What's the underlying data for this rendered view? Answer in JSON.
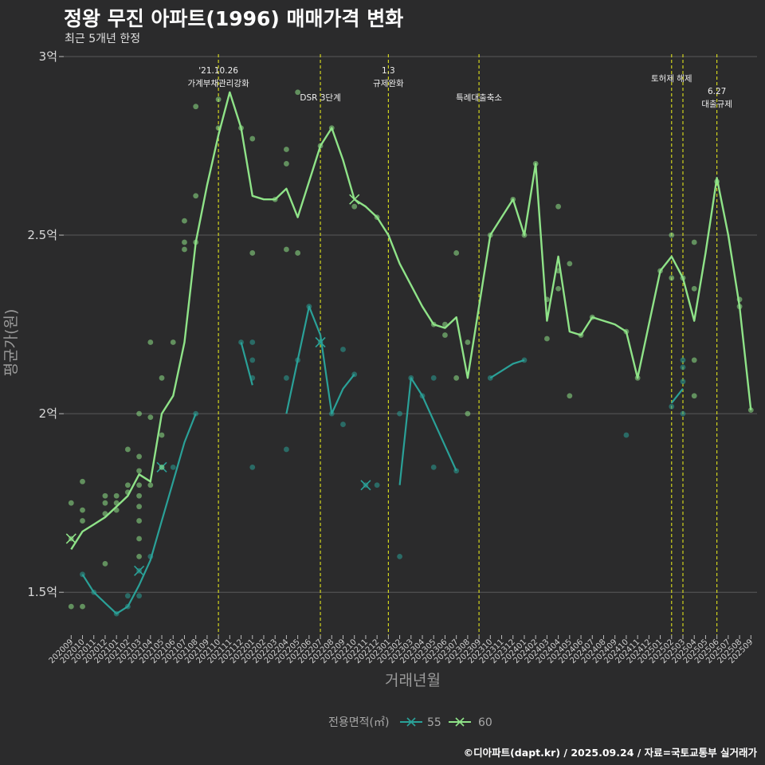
{
  "header": {
    "title": "정왕 무진 아파트(1996) 매매가격 변화",
    "subtitle": "최근 5개년 한정"
  },
  "caption": "©디아파트(dapt.kr) / 2025.09.24 / 자료=국토교통부 실거래가",
  "chart_data": {
    "type": "line",
    "title": "정왕 무진 아파트(1996) 매매가격 변화",
    "xlabel": "거래년월",
    "ylabel": "평균가(원)",
    "ylim": [
      1.38,
      3.02
    ],
    "y_ticks": [
      {
        "value": 1.5,
        "label": "1.5억"
      },
      {
        "value": 2.0,
        "label": "2억"
      },
      {
        "value": 2.5,
        "label": "2.5억"
      },
      {
        "value": 3.0,
        "label": "3억"
      }
    ],
    "x_categories": [
      "202009",
      "202010",
      "202011",
      "202012",
      "202101",
      "202102",
      "202103",
      "202104",
      "202105",
      "202106",
      "202107",
      "202108",
      "202109",
      "202110",
      "202111",
      "202112",
      "202201",
      "202202",
      "202203",
      "202204",
      "202205",
      "202206",
      "202207",
      "202208",
      "202209",
      "202210",
      "202211",
      "202212",
      "202301",
      "202302",
      "202303",
      "202304",
      "202305",
      "202306",
      "202307",
      "202308",
      "202309",
      "202310",
      "202311",
      "202312",
      "202401",
      "202402",
      "202403",
      "202404",
      "202405",
      "202406",
      "202407",
      "202408",
      "202409",
      "202410",
      "202411",
      "202412",
      "202501",
      "202502",
      "202503",
      "202504",
      "202505",
      "202506",
      "202507",
      "202508",
      "202509"
    ],
    "events": [
      {
        "month": "202110",
        "label": "'21.10.26\n가계부채관리강화",
        "row": 0
      },
      {
        "month": "202207",
        "label": "DSR 3단계",
        "row": 1
      },
      {
        "month": "202301",
        "label": "1.3\n규제완화",
        "row": 0
      },
      {
        "month": "202309",
        "label": "특례대출축소",
        "row": 1
      },
      {
        "month": "202502",
        "label": "토허제 해제",
        "row": 2
      },
      {
        "month": "202503",
        "label": "",
        "row": 2
      },
      {
        "month": "202506",
        "label": "6.27\n대출규제",
        "row": 3
      }
    ],
    "legend": {
      "title": "전용면적(㎡)",
      "placement": "bottom",
      "entries": [
        "55",
        "60"
      ]
    },
    "series": [
      {
        "name": "60",
        "color": "#8fe388",
        "line": [
          [
            0,
            1.62
          ],
          [
            1,
            1.67
          ],
          [
            2,
            1.69
          ],
          [
            3,
            1.71
          ],
          [
            4,
            1.74
          ],
          [
            5,
            1.77
          ],
          [
            6,
            1.83
          ],
          [
            7,
            1.81
          ],
          [
            8,
            2.0
          ],
          [
            9,
            2.05
          ],
          [
            10,
            2.2
          ],
          [
            11,
            2.48
          ],
          [
            12,
            2.64
          ],
          [
            13,
            2.78
          ],
          [
            14,
            2.9
          ],
          [
            15,
            2.8
          ],
          [
            16,
            2.61
          ],
          [
            17,
            2.6
          ],
          [
            18,
            2.6
          ],
          [
            19,
            2.63
          ],
          [
            20,
            2.55
          ],
          [
            21,
            2.65
          ],
          [
            22,
            2.75
          ],
          [
            23,
            2.8
          ],
          [
            24,
            2.71
          ],
          [
            25,
            2.6
          ],
          [
            26,
            2.58
          ],
          [
            27,
            2.55
          ],
          [
            28,
            2.5
          ],
          [
            29,
            2.42
          ],
          [
            30,
            2.36
          ],
          [
            31,
            2.3
          ],
          [
            32,
            2.25
          ],
          [
            33,
            2.24
          ],
          [
            34,
            2.27
          ],
          [
            35,
            2.1
          ],
          [
            36,
            2.3
          ],
          [
            37,
            2.5
          ],
          [
            38,
            2.55
          ],
          [
            39,
            2.6
          ],
          [
            40,
            2.5
          ],
          [
            41,
            2.7
          ],
          [
            42,
            2.26
          ],
          [
            43,
            2.44
          ],
          [
            44,
            2.23
          ],
          [
            45,
            2.22
          ],
          [
            46,
            2.27
          ],
          [
            47,
            2.26
          ],
          [
            48,
            2.25
          ],
          [
            49,
            2.23
          ],
          [
            50,
            2.1
          ],
          [
            51,
            2.25
          ],
          [
            52,
            2.4
          ],
          [
            53,
            2.44
          ],
          [
            54,
            2.38
          ],
          [
            55,
            2.26
          ],
          [
            56,
            2.45
          ],
          [
            57,
            2.66
          ],
          [
            58,
            2.5
          ],
          [
            59,
            2.3
          ],
          [
            60,
            2.01
          ]
        ],
        "points": [
          [
            0,
            1.75
          ],
          [
            0,
            1.65
          ],
          [
            0,
            1.46
          ],
          [
            1,
            1.81
          ],
          [
            1,
            1.73
          ],
          [
            1,
            1.7
          ],
          [
            1,
            1.46
          ],
          [
            3,
            1.77
          ],
          [
            3,
            1.75
          ],
          [
            3,
            1.72
          ],
          [
            3,
            1.58
          ],
          [
            4,
            1.77
          ],
          [
            4,
            1.75
          ],
          [
            4,
            1.73
          ],
          [
            5,
            1.9
          ],
          [
            5,
            1.8
          ],
          [
            5,
            1.78
          ],
          [
            6,
            1.88
          ],
          [
            6,
            1.84
          ],
          [
            6,
            1.8
          ],
          [
            6,
            1.77
          ],
          [
            6,
            1.74
          ],
          [
            6,
            1.7
          ],
          [
            6,
            1.65
          ],
          [
            6,
            1.6
          ],
          [
            6,
            2.0
          ],
          [
            7,
            2.2
          ],
          [
            7,
            1.99
          ],
          [
            7,
            1.8
          ],
          [
            8,
            2.1
          ],
          [
            8,
            1.94
          ],
          [
            8,
            1.85
          ],
          [
            9,
            2.2
          ],
          [
            10,
            2.54
          ],
          [
            10,
            2.48
          ],
          [
            10,
            2.46
          ],
          [
            11,
            2.86
          ],
          [
            11,
            2.61
          ],
          [
            11,
            2.48
          ],
          [
            13,
            2.88
          ],
          [
            13,
            2.8
          ],
          [
            15,
            2.8
          ],
          [
            16,
            2.77
          ],
          [
            16,
            2.45
          ],
          [
            18,
            2.6
          ],
          [
            19,
            2.74
          ],
          [
            19,
            2.7
          ],
          [
            19,
            2.46
          ],
          [
            20,
            2.9
          ],
          [
            20,
            2.45
          ],
          [
            22,
            2.75
          ],
          [
            23,
            2.8
          ],
          [
            25,
            2.58
          ],
          [
            27,
            2.55
          ],
          [
            32,
            2.25
          ],
          [
            33,
            2.25
          ],
          [
            33,
            2.22
          ],
          [
            34,
            2.45
          ],
          [
            34,
            2.1
          ],
          [
            35,
            2.2
          ],
          [
            35,
            2.0
          ],
          [
            37,
            2.5
          ],
          [
            39,
            2.6
          ],
          [
            40,
            2.5
          ],
          [
            41,
            2.7
          ],
          [
            42,
            2.32
          ],
          [
            42,
            2.21
          ],
          [
            43,
            2.58
          ],
          [
            43,
            2.4
          ],
          [
            43,
            2.35
          ],
          [
            44,
            2.42
          ],
          [
            44,
            2.05
          ],
          [
            45,
            2.22
          ],
          [
            46,
            2.27
          ],
          [
            49,
            2.23
          ],
          [
            50,
            2.1
          ],
          [
            52,
            2.4
          ],
          [
            53,
            2.5
          ],
          [
            53,
            2.38
          ],
          [
            54,
            2.38
          ],
          [
            55,
            2.48
          ],
          [
            55,
            2.35
          ],
          [
            55,
            2.15
          ],
          [
            55,
            2.05
          ],
          [
            57,
            2.65
          ],
          [
            59,
            2.32
          ],
          [
            59,
            2.3
          ],
          [
            60,
            2.01
          ]
        ],
        "x_marks": [
          [
            0,
            1.65
          ],
          [
            25,
            2.6
          ]
        ]
      },
      {
        "name": "55",
        "color": "#2aa198",
        "segments": [
          [
            [
              1,
              1.55
            ],
            [
              2,
              1.5
            ],
            [
              3,
              1.47
            ],
            [
              4,
              1.44
            ],
            [
              5,
              1.46
            ],
            [
              6,
              1.52
            ],
            [
              7,
              1.59
            ],
            [
              8,
              1.7
            ],
            [
              9,
              1.81
            ],
            [
              10,
              1.92
            ],
            [
              11,
              2.0
            ]
          ],
          [
            [
              15,
              2.2
            ],
            [
              16,
              2.08
            ]
          ],
          [
            [
              19,
              2.0
            ],
            [
              20,
              2.15
            ],
            [
              21,
              2.3
            ],
            [
              22,
              2.22
            ],
            [
              23,
              2.0
            ],
            [
              24,
              2.07
            ],
            [
              25,
              2.11
            ]
          ],
          [
            [
              29,
              1.8
            ],
            [
              30,
              2.1
            ],
            [
              31,
              2.05
            ],
            [
              32,
              1.98
            ],
            [
              34,
              1.84
            ]
          ],
          [
            [
              37,
              2.1
            ],
            [
              38,
              2.12
            ],
            [
              39,
              2.14
            ],
            [
              40,
              2.15
            ]
          ],
          [
            [
              53,
              2.03
            ],
            [
              54,
              2.07
            ]
          ]
        ],
        "points": [
          [
            1,
            1.55
          ],
          [
            2,
            1.5
          ],
          [
            4,
            1.44
          ],
          [
            5,
            1.46
          ],
          [
            5,
            1.49
          ],
          [
            6,
            1.49
          ],
          [
            6,
            1.56
          ],
          [
            7,
            1.6
          ],
          [
            8,
            1.85
          ],
          [
            9,
            1.85
          ],
          [
            11,
            2.0
          ],
          [
            15,
            2.2
          ],
          [
            16,
            2.2
          ],
          [
            16,
            2.15
          ],
          [
            16,
            2.1
          ],
          [
            16,
            1.85
          ],
          [
            19,
            2.1
          ],
          [
            19,
            1.9
          ],
          [
            20,
            2.15
          ],
          [
            21,
            2.3
          ],
          [
            22,
            2.2
          ],
          [
            23,
            2.0
          ],
          [
            24,
            2.18
          ],
          [
            24,
            1.97
          ],
          [
            25,
            2.11
          ],
          [
            26,
            1.8
          ],
          [
            27,
            1.8
          ],
          [
            29,
            2.0
          ],
          [
            29,
            1.6
          ],
          [
            30,
            2.1
          ],
          [
            31,
            2.05
          ],
          [
            32,
            2.1
          ],
          [
            32,
            1.85
          ],
          [
            34,
            1.84
          ],
          [
            37,
            2.1
          ],
          [
            40,
            2.15
          ],
          [
            49,
            1.94
          ],
          [
            53,
            2.02
          ],
          [
            54,
            2.15
          ],
          [
            54,
            2.13
          ],
          [
            54,
            2.09
          ],
          [
            54,
            2.0
          ]
        ],
        "x_marks": [
          [
            6,
            1.56
          ],
          [
            8,
            1.85
          ],
          [
            22,
            2.2
          ],
          [
            26,
            1.8
          ]
        ]
      }
    ]
  }
}
